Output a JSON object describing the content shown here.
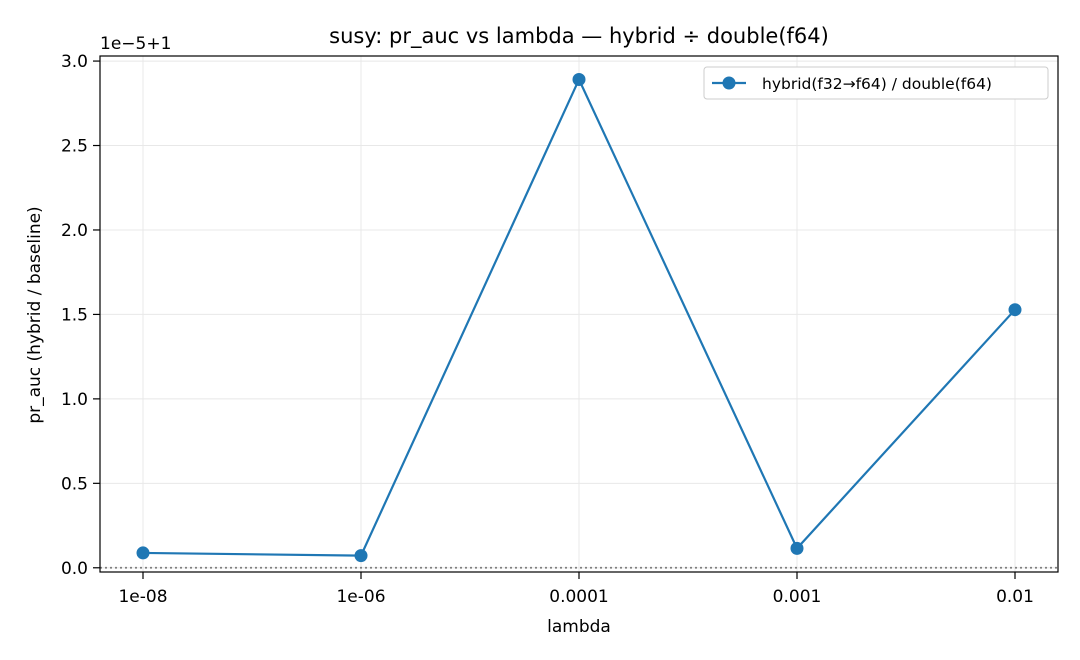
{
  "chart_data": {
    "type": "line",
    "title": "susy: pr_auc vs lambda — hybrid ÷ double(f64)",
    "xlabel": "lambda",
    "ylabel": "pr_auc (hybrid / baseline)",
    "offset_label": "1e−5+1",
    "categories": [
      "1e-08",
      "1e-06",
      "0.0001",
      "0.001",
      "0.01"
    ],
    "series": [
      {
        "name": "hybrid(f32→f64) / double(f64)",
        "color": "#1f77b4",
        "values": [
          1.00000088,
          1.00000072,
          1.00002891,
          1.00000115,
          1.00001528
        ]
      }
    ],
    "ylim": [
      0.99999975,
      1.0000303
    ],
    "yticks": [
      0.0,
      0.5,
      1.0,
      1.5,
      2.0,
      2.5,
      3.0
    ],
    "ytick_labels": [
      "0.0",
      "0.5",
      "1.0",
      "1.5",
      "2.0",
      "2.5",
      "3.0"
    ],
    "ytick_scale": 1e-05,
    "ytick_base": 1,
    "reference_line": {
      "y": 1.0,
      "style": "dotted",
      "color": "#808080"
    },
    "grid": true,
    "legend_position": "top-right"
  }
}
